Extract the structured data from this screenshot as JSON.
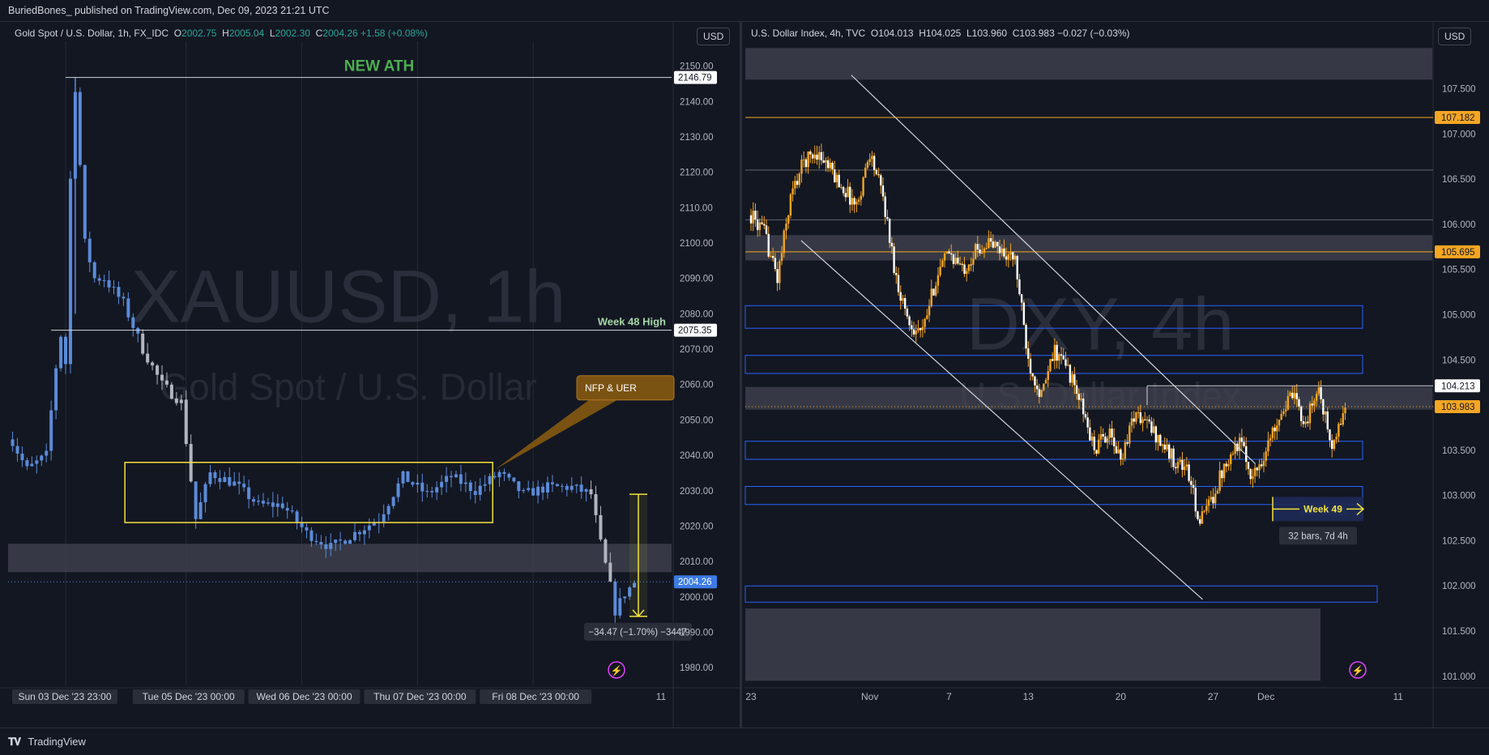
{
  "header": {
    "publish_line": "BuriedBones_ published on TradingView.com, Dec 09, 2023 21:21 UTC"
  },
  "footer": {
    "brand": "TradingView"
  },
  "colors": {
    "background": "#131722",
    "up_blue": "#5b8bd9",
    "up_orange": "#f5a623",
    "accent_yellow": "#f2e43b",
    "ath_green": "#4caf50",
    "level_orange": "#f5a623",
    "box_blue": "#2962ff"
  },
  "chart_data": [
    {
      "type": "candlestick",
      "symbol_line": "Gold Spot / U.S. Dollar, 1h, FX_IDC",
      "ohlc": {
        "O": "2002.75",
        "H": "2005.04",
        "L": "2002.30",
        "C": "2004.26",
        "change": "+1.58 (+0.08%)"
      },
      "currency_button": "USD",
      "watermark": {
        "symbol": "XAUUSD, 1h",
        "name": "Gold Spot / U.S. Dollar"
      },
      "y_ticks": [
        "2150.00",
        "2140.00",
        "2130.00",
        "2120.00",
        "2110.00",
        "2100.00",
        "2090.00",
        "2080.00",
        "2070.00",
        "2060.00",
        "2050.00",
        "2040.00",
        "2030.00",
        "2020.00",
        "2010.00",
        "2000.00",
        "1990.00",
        "1980.00"
      ],
      "ylim": [
        1975,
        2157
      ],
      "x_labels": [
        {
          "label": "Sun 03 Dec '23   23:00",
          "hour": 0
        },
        {
          "label": "Tue 05 Dec '23   00:00",
          "hour": 25
        },
        {
          "label": "Wed 06 Dec '23   00:00",
          "hour": 49
        },
        {
          "label": "Thu 07 Dec '23   00:00",
          "hour": 73
        },
        {
          "label": "Fri 08 Dec '23   00:00",
          "hour": 97
        },
        {
          "label": "11",
          "hour": 121
        }
      ],
      "price_labels": [
        {
          "value": 2146.79,
          "text": "2146.79",
          "style": "white"
        },
        {
          "value": 2075.35,
          "text": "2075.35",
          "style": "white"
        },
        {
          "value": 2004.26,
          "text": "2004.26",
          "style": "blue"
        }
      ],
      "annotations": {
        "ath": "NEW ATH",
        "week48": "Week 48 High",
        "callout": "NFP & UER",
        "measure": "−34.47 (−1.70%) −3447"
      },
      "ranges": {
        "box": [
          2021,
          2038
        ],
        "zone": [
          2007,
          2015
        ],
        "measure": [
          1994.5,
          2029
        ],
        "ath": 2146.79,
        "week48": 2075.35,
        "last": 2004.26
      },
      "key_prices": [
        [
          -12,
          2046
        ],
        [
          -8,
          2036
        ],
        [
          -4,
          2040
        ],
        [
          -2,
          2065
        ],
        [
          -1,
          2074
        ],
        [
          0,
          2066
        ],
        [
          1,
          2118
        ],
        [
          2,
          2144
        ],
        [
          4,
          2100
        ],
        [
          6,
          2090
        ],
        [
          8,
          2090
        ],
        [
          12,
          2083
        ],
        [
          16,
          2070
        ],
        [
          20,
          2060
        ],
        [
          24,
          2055
        ],
        [
          27,
          2022
        ],
        [
          30,
          2035
        ],
        [
          35,
          2032
        ],
        [
          40,
          2026
        ],
        [
          45,
          2026
        ],
        [
          50,
          2018
        ],
        [
          55,
          2014
        ],
        [
          60,
          2018
        ],
        [
          65,
          2022
        ],
        [
          70,
          2034
        ],
        [
          75,
          2029
        ],
        [
          80,
          2034
        ],
        [
          85,
          2030
        ],
        [
          90,
          2035
        ],
        [
          95,
          2029
        ],
        [
          100,
          2031
        ],
        [
          105,
          2031
        ],
        [
          109,
          2029
        ],
        [
          111,
          2015
        ],
        [
          113,
          2003
        ],
        [
          114,
          1996
        ],
        [
          116,
          2001
        ],
        [
          118,
          2004
        ]
      ]
    },
    {
      "type": "candlestick",
      "symbol_line": "U.S. Dollar Index, 4h, TVC",
      "ohlc": {
        "O": "104.013",
        "H": "104.025",
        "L": "103.960",
        "C": "103.983",
        "change": "−0.027 (−0.03%)"
      },
      "currency_button": "USD",
      "watermark": {
        "symbol": "DXY, 4h",
        "name": "U.S. Dollar Index"
      },
      "y_ticks": [
        "107.500",
        "107.000",
        "106.500",
        "106.000",
        "105.500",
        "105.000",
        "104.500",
        "104.000",
        "103.500",
        "103.000",
        "102.500",
        "102.000",
        "101.500",
        "101.000"
      ],
      "ylim": [
        100.9,
        108.06
      ],
      "x_labels": [
        {
          "label": "23",
          "day": 0
        },
        {
          "label": "Nov",
          "day": 9
        },
        {
          "label": "7",
          "day": 15
        },
        {
          "label": "13",
          "day": 21
        },
        {
          "label": "20",
          "day": 28
        },
        {
          "label": "27",
          "day": 35
        },
        {
          "label": "Dec",
          "day": 39
        },
        {
          "label": "11",
          "day": 49
        }
      ],
      "price_labels": [
        {
          "value": 107.182,
          "text": "107.182",
          "style": "orange"
        },
        {
          "value": 105.695,
          "text": "105.695",
          "style": "orange"
        },
        {
          "value": 104.213,
          "text": "104.213",
          "style": "white"
        },
        {
          "value": 103.983,
          "text": "103.983",
          "style": "orange"
        }
      ],
      "annotations": {
        "week49": "Week 49",
        "bars": "32 bars, 7d 4h"
      },
      "gray_zones": [
        [
          107.6,
          107.95
        ],
        [
          105.6,
          105.88
        ],
        [
          103.95,
          104.2
        ],
        [
          100.95,
          101.75
        ]
      ],
      "blue_boxes": [
        [
          104.85,
          105.1
        ],
        [
          104.35,
          104.55
        ],
        [
          103.4,
          103.6
        ],
        [
          102.9,
          103.1
        ],
        [
          101.82,
          102.0
        ]
      ],
      "thin_lines": [
        106.6,
        106.05
      ],
      "key_prices": [
        [
          0,
          106.1
        ],
        [
          1,
          105.9
        ],
        [
          2,
          105.4
        ],
        [
          3,
          106.3
        ],
        [
          4,
          106.7
        ],
        [
          5,
          106.8
        ],
        [
          6,
          106.6
        ],
        [
          7,
          106.4
        ],
        [
          8,
          106.2
        ],
        [
          9,
          106.8
        ],
        [
          10,
          106.3
        ],
        [
          11,
          105.4
        ],
        [
          12,
          104.9
        ],
        [
          13,
          104.8
        ],
        [
          14,
          105.4
        ],
        [
          15,
          105.7
        ],
        [
          16,
          105.5
        ],
        [
          17,
          105.7
        ],
        [
          18,
          105.8
        ],
        [
          19,
          105.7
        ],
        [
          20,
          105.6
        ],
        [
          21,
          104.5
        ],
        [
          22,
          104.1
        ],
        [
          23,
          104.6
        ],
        [
          24,
          104.4
        ],
        [
          25,
          104.0
        ],
        [
          26,
          103.5
        ],
        [
          27,
          103.7
        ],
        [
          28,
          103.4
        ],
        [
          29,
          103.9
        ],
        [
          30,
          103.8
        ],
        [
          31,
          103.6
        ],
        [
          32,
          103.4
        ],
        [
          33,
          103.3
        ],
        [
          34,
          102.7
        ],
        [
          35,
          103.0
        ],
        [
          36,
          103.4
        ],
        [
          37,
          103.6
        ],
        [
          38,
          103.2
        ],
        [
          39,
          103.5
        ],
        [
          40,
          103.9
        ],
        [
          41,
          104.1
        ],
        [
          42,
          103.8
        ],
        [
          43,
          104.2
        ],
        [
          44,
          103.5
        ],
        [
          45,
          103.98
        ]
      ]
    }
  ]
}
